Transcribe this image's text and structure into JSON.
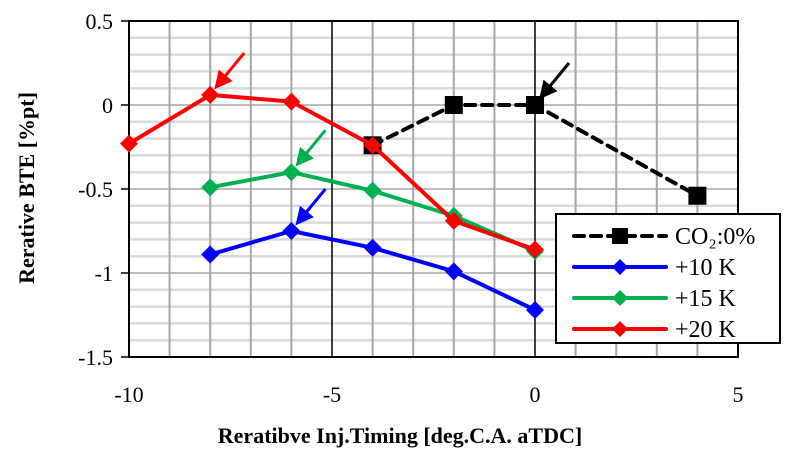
{
  "chart_data": {
    "type": "line",
    "title": "",
    "xlabel": "Reratibve Inj.Timing [deg.C.A. aTDC]",
    "ylabel": "Rerative BTE [%pt]",
    "xlim": [
      -10,
      5
    ],
    "ylim": [
      -1.5,
      0.5
    ],
    "xticks": [
      -10,
      -5,
      0,
      5
    ],
    "xtick_labels": [
      "-10",
      "-5",
      "0",
      "5"
    ],
    "yticks": [
      0.5,
      0,
      -0.5,
      -1,
      -1.5
    ],
    "ytick_labels": [
      "0.5",
      "0",
      "-0.5",
      "-1",
      "-1.5"
    ],
    "grid": true,
    "legend_position": "bottom-right",
    "series": [
      {
        "name": "CO₂:0%",
        "color": "#000000",
        "dashed": true,
        "marker": "square",
        "x": [
          -4,
          -2,
          0,
          4
        ],
        "y": [
          -0.24,
          0.0,
          0.0,
          -0.54
        ]
      },
      {
        "name": "+10 K",
        "color": "#0000ff",
        "dashed": false,
        "marker": "diamond",
        "x": [
          -8,
          -6,
          -4,
          -2,
          0
        ],
        "y": [
          -0.89,
          -0.75,
          -0.85,
          -0.99,
          -1.22
        ]
      },
      {
        "name": "+15 K",
        "color": "#00b050",
        "dashed": false,
        "marker": "diamond",
        "x": [
          -8,
          -6,
          -4,
          -2,
          0
        ],
        "y": [
          -0.49,
          -0.4,
          -0.51,
          -0.66,
          -0.87
        ]
      },
      {
        "name": "+20 K",
        "color": "#ff0000",
        "dashed": false,
        "marker": "diamond",
        "x": [
          -10,
          -8,
          -6,
          -4,
          -2,
          0
        ],
        "y": [
          -0.23,
          0.06,
          0.02,
          -0.24,
          -0.69,
          -0.86
        ]
      }
    ],
    "annotations": [
      {
        "type": "arrow",
        "series": "+20 K",
        "x": -8,
        "y": 0.06,
        "color": "#ff0000"
      },
      {
        "type": "arrow",
        "series": "+15 K",
        "x": -6,
        "y": -0.4,
        "color": "#00b050"
      },
      {
        "type": "arrow",
        "series": "+10 K",
        "x": -6,
        "y": -0.75,
        "color": "#0000ff"
      },
      {
        "type": "arrow",
        "series": "CO₂:0%",
        "x": 0,
        "y": 0.0,
        "color": "#000000"
      }
    ]
  }
}
